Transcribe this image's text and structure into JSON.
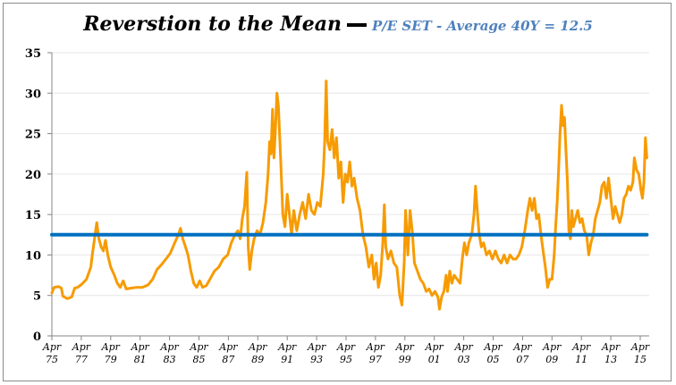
{
  "chart_data": {
    "type": "line",
    "title": "Reverstion to the Mean",
    "subtitle": "P/E SET - Average 40Y = 12.5",
    "xlabel": "",
    "ylabel": "",
    "ylim": [
      0,
      35
    ],
    "xlim": [
      1975.25,
      2016.0
    ],
    "grid": true,
    "legend": "none",
    "yticks": [
      "0",
      "5",
      "10",
      "15",
      "20",
      "25",
      "30",
      "35"
    ],
    "ytick_values": [
      0,
      5,
      10,
      15,
      20,
      25,
      30,
      35
    ],
    "xticks": [
      {
        "line1": "Apr",
        "line2": "75",
        "year": 1975.25
      },
      {
        "line1": "Apr",
        "line2": "77",
        "year": 1977.25
      },
      {
        "line1": "Apr",
        "line2": "79",
        "year": 1979.25
      },
      {
        "line1": "Apr",
        "line2": "81",
        "year": 1981.25
      },
      {
        "line1": "Apr",
        "line2": "83",
        "year": 1983.25
      },
      {
        "line1": "Apr",
        "line2": "85",
        "year": 1985.25
      },
      {
        "line1": "Apr",
        "line2": "87",
        "year": 1987.25
      },
      {
        "line1": "Apr",
        "line2": "89",
        "year": 1989.25
      },
      {
        "line1": "Apr",
        "line2": "91",
        "year": 1991.25
      },
      {
        "line1": "Apr",
        "line2": "93",
        "year": 1993.25
      },
      {
        "line1": "Apr",
        "line2": "95",
        "year": 1995.25
      },
      {
        "line1": "Apr",
        "line2": "97",
        "year": 1997.25
      },
      {
        "line1": "Apr",
        "line2": "99",
        "year": 1999.25
      },
      {
        "line1": "Apr",
        "line2": "01",
        "year": 2001.25
      },
      {
        "line1": "Apr",
        "line2": "03",
        "year": 2003.25
      },
      {
        "line1": "Apr",
        "line2": "05",
        "year": 2005.25
      },
      {
        "line1": "Apr",
        "line2": "07",
        "year": 2007.25
      },
      {
        "line1": "Apr",
        "line2": "09",
        "year": 2009.25
      },
      {
        "line1": "Apr",
        "line2": "11",
        "year": 2011.25
      },
      {
        "line1": "Apr",
        "line2": "13",
        "year": 2013.25
      },
      {
        "line1": "Apr",
        "line2": "15",
        "year": 2015.25
      }
    ],
    "series": [
      {
        "name": "P/E SET",
        "color": "#f79b00",
        "points": [
          [
            1975.25,
            5.3
          ],
          [
            1975.4,
            6.0
          ],
          [
            1975.7,
            6.1
          ],
          [
            1975.9,
            5.9
          ],
          [
            1976.0,
            4.9
          ],
          [
            1976.3,
            4.6
          ],
          [
            1976.6,
            4.8
          ],
          [
            1976.8,
            5.9
          ],
          [
            1977.0,
            6.0
          ],
          [
            1977.3,
            6.4
          ],
          [
            1977.6,
            7.0
          ],
          [
            1977.9,
            8.5
          ],
          [
            1978.0,
            10.0
          ],
          [
            1978.15,
            12.0
          ],
          [
            1978.3,
            14.0
          ],
          [
            1978.45,
            12.0
          ],
          [
            1978.6,
            11.0
          ],
          [
            1978.75,
            10.5
          ],
          [
            1978.9,
            11.8
          ],
          [
            1979.05,
            10.0
          ],
          [
            1979.25,
            8.5
          ],
          [
            1979.5,
            7.5
          ],
          [
            1979.7,
            6.5
          ],
          [
            1979.9,
            6.0
          ],
          [
            1980.1,
            6.8
          ],
          [
            1980.3,
            5.8
          ],
          [
            1980.6,
            5.9
          ],
          [
            1981.0,
            6.0
          ],
          [
            1981.4,
            6.0
          ],
          [
            1981.8,
            6.3
          ],
          [
            1982.1,
            7.0
          ],
          [
            1982.4,
            8.2
          ],
          [
            1982.7,
            8.8
          ],
          [
            1983.0,
            9.5
          ],
          [
            1983.3,
            10.2
          ],
          [
            1983.6,
            11.5
          ],
          [
            1983.85,
            12.5
          ],
          [
            1984.0,
            13.3
          ],
          [
            1984.15,
            12.0
          ],
          [
            1984.3,
            11.2
          ],
          [
            1984.5,
            10.0
          ],
          [
            1984.7,
            8.0
          ],
          [
            1984.9,
            6.5
          ],
          [
            1985.1,
            6.0
          ],
          [
            1985.3,
            6.8
          ],
          [
            1985.5,
            6.0
          ],
          [
            1985.75,
            6.2
          ],
          [
            1986.0,
            7.0
          ],
          [
            1986.3,
            8.0
          ],
          [
            1986.6,
            8.5
          ],
          [
            1986.9,
            9.5
          ],
          [
            1987.2,
            10.0
          ],
          [
            1987.45,
            11.5
          ],
          [
            1987.7,
            12.5
          ],
          [
            1987.9,
            13.0
          ],
          [
            1988.05,
            12.0
          ],
          [
            1988.2,
            14.5
          ],
          [
            1988.35,
            16.0
          ],
          [
            1988.5,
            20.2
          ],
          [
            1988.6,
            11.0
          ],
          [
            1988.7,
            8.2
          ],
          [
            1988.85,
            10.5
          ],
          [
            1989.0,
            12.0
          ],
          [
            1989.2,
            13.0
          ],
          [
            1989.4,
            12.5
          ],
          [
            1989.6,
            14.0
          ],
          [
            1989.8,
            16.5
          ],
          [
            1989.95,
            20.0
          ],
          [
            1990.05,
            24.0
          ],
          [
            1990.15,
            22.5
          ],
          [
            1990.25,
            28.0
          ],
          [
            1990.35,
            22.0
          ],
          [
            1990.45,
            25.5
          ],
          [
            1990.55,
            30.0
          ],
          [
            1990.65,
            28.5
          ],
          [
            1990.8,
            22.0
          ],
          [
            1990.95,
            15.0
          ],
          [
            1991.1,
            13.5
          ],
          [
            1991.25,
            17.5
          ],
          [
            1991.4,
            15.0
          ],
          [
            1991.55,
            12.5
          ],
          [
            1991.7,
            15.5
          ],
          [
            1991.9,
            13.0
          ],
          [
            1992.1,
            15.0
          ],
          [
            1992.3,
            16.5
          ],
          [
            1992.5,
            14.5
          ],
          [
            1992.7,
            17.5
          ],
          [
            1992.9,
            15.5
          ],
          [
            1993.1,
            15.0
          ],
          [
            1993.3,
            16.5
          ],
          [
            1993.5,
            16.0
          ],
          [
            1993.7,
            20.0
          ],
          [
            1993.8,
            24.0
          ],
          [
            1993.9,
            31.5
          ],
          [
            1994.0,
            24.0
          ],
          [
            1994.15,
            23.0
          ],
          [
            1994.3,
            25.5
          ],
          [
            1994.45,
            22.0
          ],
          [
            1994.6,
            24.5
          ],
          [
            1994.75,
            19.5
          ],
          [
            1994.9,
            21.5
          ],
          [
            1995.05,
            16.5
          ],
          [
            1995.2,
            20.0
          ],
          [
            1995.35,
            19.0
          ],
          [
            1995.5,
            21.5
          ],
          [
            1995.65,
            18.5
          ],
          [
            1995.8,
            19.5
          ],
          [
            1996.0,
            17.0
          ],
          [
            1996.2,
            15.5
          ],
          [
            1996.4,
            12.5
          ],
          [
            1996.6,
            11.0
          ],
          [
            1996.8,
            8.5
          ],
          [
            1997.0,
            10.0
          ],
          [
            1997.15,
            7.0
          ],
          [
            1997.3,
            9.0
          ],
          [
            1997.45,
            6.0
          ],
          [
            1997.6,
            7.5
          ],
          [
            1997.75,
            11.5
          ],
          [
            1997.85,
            16.2
          ],
          [
            1997.95,
            11.0
          ],
          [
            1998.1,
            9.5
          ],
          [
            1998.3,
            10.5
          ],
          [
            1998.5,
            9.0
          ],
          [
            1998.7,
            8.5
          ],
          [
            1998.9,
            5.0
          ],
          [
            1999.05,
            3.8
          ],
          [
            1999.2,
            9.0
          ],
          [
            1999.3,
            15.5
          ],
          [
            1999.45,
            10.0
          ],
          [
            1999.6,
            15.5
          ],
          [
            1999.75,
            13.0
          ],
          [
            1999.9,
            9.0
          ],
          [
            2000.1,
            8.0
          ],
          [
            2000.3,
            7.0
          ],
          [
            2000.5,
            6.5
          ],
          [
            2000.7,
            5.5
          ],
          [
            2000.9,
            5.8
          ],
          [
            2001.1,
            5.0
          ],
          [
            2001.3,
            5.5
          ],
          [
            2001.5,
            4.8
          ],
          [
            2001.6,
            3.3
          ],
          [
            2001.75,
            4.8
          ],
          [
            2001.9,
            5.5
          ],
          [
            2002.05,
            7.5
          ],
          [
            2002.15,
            5.5
          ],
          [
            2002.3,
            8.0
          ],
          [
            2002.45,
            6.5
          ],
          [
            2002.6,
            7.5
          ],
          [
            2003.0,
            6.5
          ],
          [
            2003.15,
            9.5
          ],
          [
            2003.3,
            11.5
          ],
          [
            2003.45,
            10.0
          ],
          [
            2003.6,
            11.5
          ],
          [
            2003.8,
            12.5
          ],
          [
            2003.95,
            15.0
          ],
          [
            2004.05,
            18.5
          ],
          [
            2004.15,
            16.0
          ],
          [
            2004.3,
            12.5
          ],
          [
            2004.45,
            11.0
          ],
          [
            2004.6,
            11.5
          ],
          [
            2004.8,
            10.0
          ],
          [
            2005.0,
            10.5
          ],
          [
            2005.2,
            9.5
          ],
          [
            2005.4,
            10.5
          ],
          [
            2005.6,
            9.5
          ],
          [
            2005.8,
            9.0
          ],
          [
            2006.0,
            10.0
          ],
          [
            2006.2,
            9.0
          ],
          [
            2006.4,
            10.0
          ],
          [
            2006.6,
            9.5
          ],
          [
            2006.8,
            9.5
          ],
          [
            2007.0,
            10.0
          ],
          [
            2007.2,
            11.0
          ],
          [
            2007.4,
            13.0
          ],
          [
            2007.6,
            15.5
          ],
          [
            2007.75,
            17.0
          ],
          [
            2007.9,
            15.5
          ],
          [
            2008.05,
            17.0
          ],
          [
            2008.2,
            14.5
          ],
          [
            2008.35,
            15.0
          ],
          [
            2008.5,
            12.5
          ],
          [
            2008.65,
            10.5
          ],
          [
            2008.8,
            8.5
          ],
          [
            2008.95,
            6.0
          ],
          [
            2009.1,
            7.0
          ],
          [
            2009.25,
            7.0
          ],
          [
            2009.4,
            10.0
          ],
          [
            2009.5,
            13.5
          ],
          [
            2009.6,
            16.5
          ],
          [
            2009.7,
            20.5
          ],
          [
            2009.8,
            25.0
          ],
          [
            2009.9,
            28.5
          ],
          [
            2010.0,
            26.0
          ],
          [
            2010.1,
            27.0
          ],
          [
            2010.2,
            23.0
          ],
          [
            2010.3,
            19.0
          ],
          [
            2010.4,
            13.0
          ],
          [
            2010.5,
            12.0
          ],
          [
            2010.6,
            15.5
          ],
          [
            2010.7,
            13.5
          ],
          [
            2010.85,
            14.5
          ],
          [
            2011.0,
            15.5
          ],
          [
            2011.15,
            14.0
          ],
          [
            2011.3,
            14.5
          ],
          [
            2011.45,
            13.0
          ],
          [
            2011.6,
            12.5
          ],
          [
            2011.75,
            10.0
          ],
          [
            2011.9,
            11.5
          ],
          [
            2012.05,
            12.5
          ],
          [
            2012.2,
            14.5
          ],
          [
            2012.35,
            15.5
          ],
          [
            2012.5,
            16.5
          ],
          [
            2012.65,
            18.5
          ],
          [
            2012.8,
            19.0
          ],
          [
            2012.95,
            17.0
          ],
          [
            2013.1,
            19.5
          ],
          [
            2013.25,
            17.0
          ],
          [
            2013.4,
            14.5
          ],
          [
            2013.55,
            16.0
          ],
          [
            2013.7,
            15.0
          ],
          [
            2013.85,
            14.0
          ],
          [
            2014.0,
            15.0
          ],
          [
            2014.15,
            17.0
          ],
          [
            2014.3,
            17.5
          ],
          [
            2014.45,
            18.5
          ],
          [
            2014.6,
            18.0
          ],
          [
            2014.75,
            19.0
          ],
          [
            2014.85,
            22.0
          ],
          [
            2015.0,
            20.5
          ],
          [
            2015.15,
            20.0
          ],
          [
            2015.3,
            18.0
          ],
          [
            2015.4,
            17.0
          ],
          [
            2015.5,
            19.0
          ],
          [
            2015.6,
            24.5
          ],
          [
            2015.7,
            22.0
          ]
        ]
      },
      {
        "name": "Average 40Y",
        "color": "#0070c0",
        "points": [
          [
            1975.25,
            12.5
          ],
          [
            2015.7,
            12.5
          ]
        ]
      }
    ]
  }
}
